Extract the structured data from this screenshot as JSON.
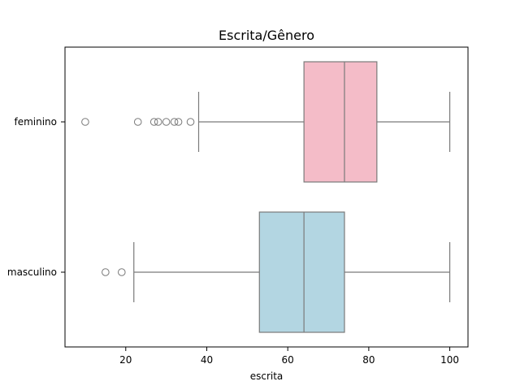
{
  "chart_data": {
    "type": "boxplot",
    "title": "Escrita/Gênero",
    "xlabel": "escrita",
    "ylabel": "",
    "orientation": "horizontal",
    "xlim": [
      5,
      104.5
    ],
    "xticks": [
      20,
      40,
      60,
      80,
      100
    ],
    "grid": false,
    "categories": [
      "feminino",
      "masculino"
    ],
    "series": [
      {
        "category": "feminino",
        "color": "#f4bcc8",
        "whisker_low": 38,
        "q1": 64,
        "median": 74,
        "q3": 82,
        "whisker_high": 100,
        "outliers": [
          10,
          23,
          27,
          28,
          30,
          32,
          33,
          36
        ]
      },
      {
        "category": "masculino",
        "color": "#b3d6e2",
        "whisker_low": 22,
        "q1": 53,
        "median": 64,
        "q3": 74,
        "whisker_high": 100,
        "outliers": [
          15,
          19
        ]
      }
    ],
    "line_color": "#7a7a7a"
  }
}
